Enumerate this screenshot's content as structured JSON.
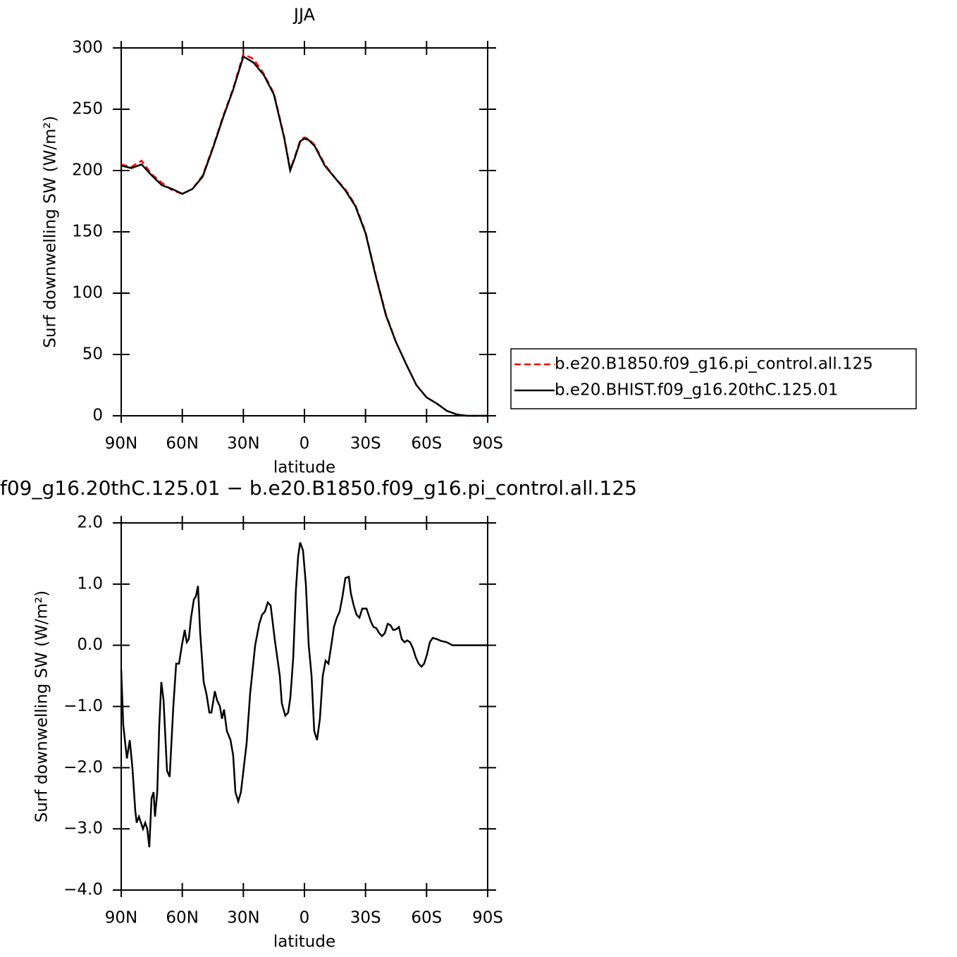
{
  "chart_data": [
    {
      "type": "line",
      "title": "JJA",
      "xlabel": "latitude",
      "ylabel": "Surf downwelling SW (W/m²)",
      "xlim": [
        90,
        -90
      ],
      "xticks": [
        {
          "value": 90,
          "label": "90N"
        },
        {
          "value": 60,
          "label": "60N"
        },
        {
          "value": 30,
          "label": "30N"
        },
        0,
        {
          "value": -30,
          "label": "30S"
        },
        {
          "value": -60,
          "label": "60S"
        },
        {
          "value": -90,
          "label": "90S"
        }
      ],
      "ylim": [
        0,
        300
      ],
      "yticks": [
        0,
        50,
        100,
        150,
        200,
        250,
        300
      ],
      "legend": "right",
      "x": [
        90,
        85,
        80,
        75,
        70,
        65,
        60,
        55,
        50,
        45,
        40,
        35,
        30,
        25,
        20,
        15,
        10,
        7,
        5,
        2,
        0,
        -2,
        -5,
        -10,
        -15,
        -20,
        -25,
        -30,
        -35,
        -40,
        -45,
        -50,
        -55,
        -60,
        -65,
        -70,
        -75,
        -80,
        -85,
        -90
      ],
      "series": [
        {
          "name": "b.e20.B1850.f09_g16.pi_control.all.125",
          "color": "#ff0000",
          "linestyle": "dashed",
          "values": [
            205,
            203,
            208,
            197,
            190,
            184,
            181,
            185,
            196,
            219,
            244,
            267,
            295,
            291,
            279,
            263,
            228,
            201,
            210,
            225,
            227,
            226,
            221,
            205,
            194,
            185,
            172,
            150,
            115,
            83,
            60,
            42,
            25,
            15,
            10,
            4,
            1,
            0,
            0,
            0
          ]
        },
        {
          "name": "b.e20.BHIST.f09_g16.20thC.125.01",
          "color": "#000000",
          "linestyle": "solid",
          "values": [
            204,
            202,
            205,
            196,
            188,
            185,
            181,
            185,
            195,
            218,
            243,
            266,
            293,
            288,
            278,
            262,
            227,
            200,
            209,
            224,
            226,
            225,
            220,
            204,
            194,
            184,
            171,
            149,
            114,
            82,
            60,
            42,
            25,
            15,
            10,
            4,
            1,
            0,
            0,
            0
          ]
        }
      ]
    },
    {
      "type": "line",
      "title": "f09_g16.20thC.125.01 − b.e20.B1850.f09_g16.pi_control.all.125",
      "xlabel": "latitude",
      "ylabel": "Surf downwelling SW (W/m²)",
      "xlim": [
        90,
        -90
      ],
      "xticks": [
        {
          "value": 90,
          "label": "90N"
        },
        {
          "value": 60,
          "label": "60N"
        },
        {
          "value": 30,
          "label": "30N"
        },
        0,
        {
          "value": -30,
          "label": "30S"
        },
        {
          "value": -60,
          "label": "60S"
        },
        {
          "value": -90,
          "label": "90S"
        }
      ],
      "ylim": [
        -4,
        2
      ],
      "yticks": [
        {
          "value": -4,
          "label": "−4.0"
        },
        {
          "value": -3,
          "label": "−3.0"
        },
        {
          "value": -2,
          "label": "−2.0"
        },
        {
          "value": -1,
          "label": "−1.0"
        },
        {
          "value": 0,
          "label": "0.0"
        },
        {
          "value": 1,
          "label": "1.0"
        },
        {
          "value": 2,
          "label": "2.0"
        }
      ],
      "x": [
        90,
        89.0,
        87.2,
        85.8,
        84.5,
        83.1,
        82.4,
        81.3,
        80.3,
        79.3,
        78.2,
        77.2,
        76.2,
        75.1,
        74.1,
        73.4,
        72.3,
        71.3,
        70.3,
        69.2,
        67.5,
        66.2,
        64.4,
        63.0,
        61.6,
        60.2,
        58.8,
        57.8,
        56.8,
        55.7,
        54.3,
        53.3,
        52.3,
        51.2,
        49.5,
        48.1,
        46.7,
        45.7,
        44.0,
        42.9,
        41.5,
        40.5,
        39.5,
        38.1,
        36.3,
        35.0,
        33.9,
        32.5,
        31.2,
        29.8,
        28.4,
        26.7,
        24.2,
        22.2,
        20.8,
        19.4,
        18.0,
        16.6,
        14.6,
        12.1,
        11.1,
        9.4,
        8.0,
        6.9,
        5.5,
        4.2,
        3.1,
        2.1,
        0.7,
        -0.7,
        -2.1,
        -3.5,
        -4.8,
        -6.2,
        -7.6,
        -9.0,
        -10.4,
        -11.8,
        -13.2,
        -14.5,
        -15.9,
        -17.3,
        -18.7,
        -20.1,
        -21.8,
        -22.8,
        -24.2,
        -25.6,
        -27.0,
        -28.4,
        -30.5,
        -32.5,
        -33.9,
        -35.3,
        -36.7,
        -38.1,
        -39.5,
        -40.9,
        -42.2,
        -43.6,
        -45.0,
        -46.4,
        -47.8,
        -49.2,
        -50.5,
        -51.9,
        -53.3,
        -54.7,
        -56.1,
        -57.5,
        -58.8,
        -60.2,
        -61.6,
        -63.0,
        -65.1,
        -67.2,
        -69.9,
        -72.7,
        -75.5,
        -90
      ],
      "series": [
        {
          "color": "#000000",
          "linestyle": "solid",
          "values": [
            -0.4,
            -1.3,
            -1.85,
            -1.55,
            -2.0,
            -2.7,
            -2.9,
            -2.8,
            -2.9,
            -3.0,
            -2.9,
            -3.0,
            -3.3,
            -2.5,
            -2.4,
            -2.8,
            -2.4,
            -1.3,
            -0.6,
            -0.9,
            -2.05,
            -2.15,
            -1.0,
            -0.3,
            -0.3,
            0.0,
            0.25,
            0.05,
            0.1,
            0.45,
            0.75,
            0.8,
            0.97,
            0.2,
            -0.6,
            -0.8,
            -1.1,
            -1.1,
            -0.75,
            -0.9,
            -1.0,
            -1.2,
            -1.05,
            -1.4,
            -1.55,
            -1.8,
            -2.4,
            -2.55,
            -2.4,
            -2.0,
            -1.6,
            -0.8,
            0.0,
            0.35,
            0.5,
            0.55,
            0.7,
            0.65,
            0.1,
            -0.5,
            -0.95,
            -1.15,
            -1.1,
            -0.85,
            -0.2,
            0.9,
            1.45,
            1.68,
            1.55,
            1.0,
            0.0,
            -0.5,
            -1.4,
            -1.55,
            -1.2,
            -0.5,
            -0.25,
            -0.3,
            0.0,
            0.3,
            0.45,
            0.55,
            0.8,
            1.1,
            1.12,
            0.85,
            0.65,
            0.5,
            0.45,
            0.6,
            0.6,
            0.4,
            0.3,
            0.28,
            0.2,
            0.15,
            0.2,
            0.35,
            0.33,
            0.25,
            0.26,
            0.3,
            0.1,
            0.05,
            0.08,
            0.05,
            -0.05,
            -0.2,
            -0.3,
            -0.35,
            -0.3,
            -0.15,
            0.05,
            0.12,
            0.1,
            0.07,
            0.05,
            0.0,
            0.0,
            0.0
          ]
        }
      ]
    }
  ]
}
